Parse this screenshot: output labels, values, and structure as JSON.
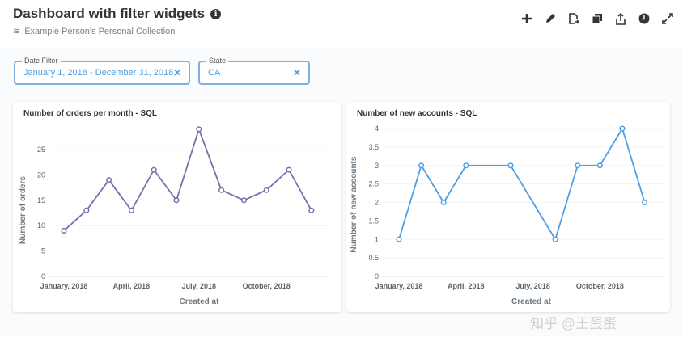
{
  "header": {
    "title": "Dashboard with filter widgets",
    "collection": "Example Person's Personal Collection",
    "tools": [
      "add-icon",
      "edit-pencil-icon",
      "move-document-icon",
      "duplicate-icon",
      "share-icon",
      "auto-refresh-clock-icon",
      "fullscreen-icon"
    ]
  },
  "filters": [
    {
      "label": "Date Filter",
      "value": "January 1, 2018 - December 31, 2018"
    },
    {
      "label": "State",
      "value": "CA"
    }
  ],
  "watermark": "知乎 @王蛋蛋",
  "chart_data": [
    {
      "type": "line",
      "title": "Number of orders per month - SQL",
      "xlabel": "Created at",
      "ylabel": "Number of orders",
      "color": "#7172ad",
      "ylim": [
        0,
        29
      ],
      "yticks": [
        0,
        5,
        10,
        15,
        20,
        25
      ],
      "xtick_labels": [
        {
          "month": 0,
          "label": "January, 2018"
        },
        {
          "month": 3,
          "label": "April, 2018"
        },
        {
          "month": 6,
          "label": "July, 2018"
        },
        {
          "month": 9,
          "label": "October, 2018"
        }
      ],
      "points": [
        {
          "month": 0,
          "value": 9
        },
        {
          "month": 1,
          "value": 13
        },
        {
          "month": 2,
          "value": 19
        },
        {
          "month": 3,
          "value": 13
        },
        {
          "month": 4,
          "value": 21
        },
        {
          "month": 5,
          "value": 15
        },
        {
          "month": 6,
          "value": 29
        },
        {
          "month": 7,
          "value": 17
        },
        {
          "month": 8,
          "value": 15
        },
        {
          "month": 9,
          "value": 17
        },
        {
          "month": 10,
          "value": 21
        },
        {
          "month": 11,
          "value": 13
        }
      ]
    },
    {
      "type": "line",
      "title": "Number of new accounts - SQL",
      "xlabel": "Created at",
      "ylabel": "Number of new accounts",
      "color": "#509ee3",
      "ylim": [
        0,
        4
      ],
      "yticks": [
        0,
        0.5,
        1,
        1.5,
        2,
        2.5,
        3,
        3.5,
        4
      ],
      "xtick_labels": [
        {
          "month": 0,
          "label": "January, 2018"
        },
        {
          "month": 3,
          "label": "April, 2018"
        },
        {
          "month": 6,
          "label": "July, 2018"
        },
        {
          "month": 9,
          "label": "October, 2018"
        }
      ],
      "points": [
        {
          "month": 0,
          "value": 1
        },
        {
          "month": 1,
          "value": 3
        },
        {
          "month": 2,
          "value": 2
        },
        {
          "month": 3,
          "value": 3
        },
        {
          "month": 5,
          "value": 3
        },
        {
          "month": 7,
          "value": 1
        },
        {
          "month": 8,
          "value": 3
        },
        {
          "month": 9,
          "value": 3
        },
        {
          "month": 10,
          "value": 4
        },
        {
          "month": 11,
          "value": 2
        }
      ]
    }
  ]
}
